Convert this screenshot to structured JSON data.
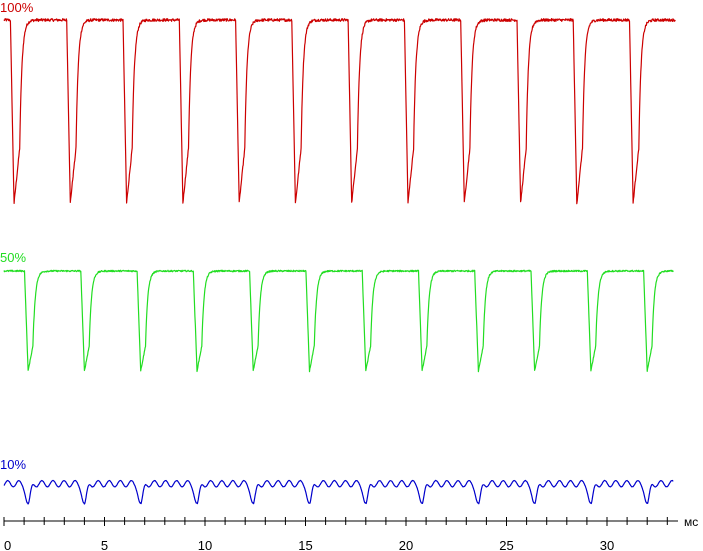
{
  "chart_data": {
    "type": "line",
    "xlabel": "мс",
    "xlim": [
      0,
      33.5
    ],
    "xticks": [
      0,
      5,
      10,
      15,
      20,
      25,
      30
    ],
    "minor_tick_step": 1,
    "period_ms": 2.8,
    "grid": false,
    "legend": "none",
    "series": [
      {
        "name": "100%",
        "color": "#cc0000",
        "shape": "dip",
        "high": 100,
        "low": 0,
        "first_dip_ms": 0.5,
        "dip_count": 12
      },
      {
        "name": "50%",
        "color": "#22dd22",
        "shape": "dip",
        "high": 100,
        "low": 0,
        "first_dip_ms": 1.2,
        "dip_count": 12
      },
      {
        "name": "10%",
        "color": "#0000cc",
        "shape": "ripple",
        "high": 100,
        "low": 0,
        "first_dip_ms": 1.2,
        "dip_count": 12
      }
    ]
  }
}
